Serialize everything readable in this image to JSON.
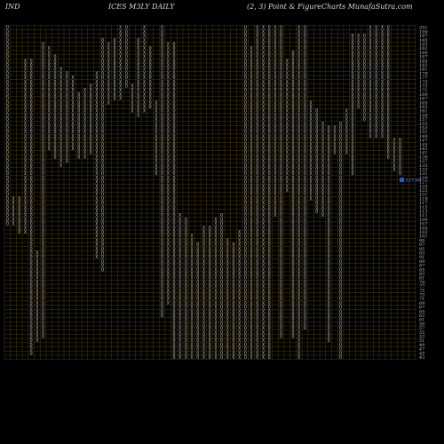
{
  "header": {
    "left": "IND",
    "middle": "ICES M3LY DAILY",
    "right": "(2, 3) Point & Figure",
    "site": "Charts MunafaSutra.com"
  },
  "colors": {
    "background": "#000000",
    "grid": "#4a3c16",
    "marker": "#bdbdbd",
    "price_box": "#1e5fd6"
  },
  "chart_data": {
    "type": "point-and-figure",
    "title": "ICES M3LY DAILY",
    "box_size": 2,
    "reversal": 3,
    "y_ticks": [
      201,
      199,
      197,
      195,
      193,
      191,
      189,
      187,
      185,
      183,
      181,
      179,
      177,
      175,
      173,
      171,
      169,
      167,
      165,
      163,
      161,
      159,
      157,
      155,
      153,
      151,
      149,
      147,
      145,
      143,
      141,
      139,
      137,
      135,
      133,
      131,
      129,
      127,
      125,
      123,
      121,
      119,
      117,
      115,
      113,
      111,
      109,
      107,
      105,
      103,
      101,
      99,
      97,
      95,
      93,
      91,
      89,
      87,
      85,
      83,
      81,
      79,
      77,
      75,
      73,
      71,
      69,
      67,
      65,
      63,
      61,
      59,
      57,
      55,
      53,
      51,
      49,
      47,
      45,
      43
    ],
    "ylim": [
      43,
      201
    ],
    "last_price": 127.99,
    "last_price_label": "127.99",
    "columns": [
      {
        "type": "O",
        "high": 201,
        "low": 107
      },
      {
        "type": "X",
        "high": 119,
        "low": 107
      },
      {
        "type": "O",
        "high": 119,
        "low": 103
      },
      {
        "type": "X",
        "high": 185,
        "low": 103
      },
      {
        "type": "O",
        "high": 185,
        "low": 45
      },
      {
        "type": "X",
        "high": 93,
        "low": 51
      },
      {
        "type": "O",
        "high": 193,
        "low": 53
      },
      {
        "type": "X",
        "high": 191,
        "low": 143
      },
      {
        "type": "O",
        "high": 187,
        "low": 139
      },
      {
        "type": "X",
        "high": 181,
        "low": 135
      },
      {
        "type": "O",
        "high": 179,
        "low": 137
      },
      {
        "type": "X",
        "high": 177,
        "low": 143
      },
      {
        "type": "O",
        "high": 169,
        "low": 139
      },
      {
        "type": "X",
        "high": 171,
        "low": 139
      },
      {
        "type": "O",
        "high": 173,
        "low": 141
      },
      {
        "type": "X",
        "high": 179,
        "low": 91
      },
      {
        "type": "O",
        "high": 195,
        "low": 85
      },
      {
        "type": "X",
        "high": 193,
        "low": 165
      },
      {
        "type": "O",
        "high": 195,
        "low": 167
      },
      {
        "type": "X",
        "high": 201,
        "low": 167
      },
      {
        "type": "O",
        "high": 201,
        "low": 173
      },
      {
        "type": "X",
        "high": 173,
        "low": 161
      },
      {
        "type": "O",
        "high": 195,
        "low": 159
      },
      {
        "type": "X",
        "high": 201,
        "low": 161
      },
      {
        "type": "O",
        "high": 191,
        "low": 163
      },
      {
        "type": "X",
        "high": 165,
        "low": 131
      },
      {
        "type": "O",
        "high": 201,
        "low": 63
      },
      {
        "type": "X",
        "high": 193,
        "low": 69
      },
      {
        "type": "O",
        "high": 193,
        "low": 33
      },
      {
        "type": "X",
        "high": 111,
        "low": 33
      },
      {
        "type": "O",
        "high": 109,
        "low": 29
      },
      {
        "type": "X",
        "high": 101,
        "low": 29
      },
      {
        "type": "O",
        "high": 97,
        "low": 19
      },
      {
        "type": "X",
        "high": 105,
        "low": 19
      },
      {
        "type": "O",
        "high": 105,
        "low": 19
      },
      {
        "type": "X",
        "high": 109,
        "low": 21
      },
      {
        "type": "O",
        "high": 111,
        "low": 15
      },
      {
        "type": "X",
        "high": 99,
        "low": 27
      },
      {
        "type": "O",
        "high": 97,
        "low": 25
      },
      {
        "type": "X",
        "high": 103,
        "low": 37
      },
      {
        "type": "O",
        "high": 201,
        "low": 23
      },
      {
        "type": "X",
        "high": 191,
        "low": 23
      },
      {
        "type": "O",
        "high": 201,
        "low": 17
      },
      {
        "type": "X",
        "high": 201,
        "low": 21
      },
      {
        "type": "O",
        "high": 201,
        "low": 37
      },
      {
        "type": "X",
        "high": 201,
        "low": 111
      },
      {
        "type": "O",
        "high": 201,
        "low": 53
      },
      {
        "type": "X",
        "high": 185,
        "low": 123
      },
      {
        "type": "O",
        "high": 189,
        "low": 53
      },
      {
        "type": "X",
        "high": 201,
        "low": 43
      },
      {
        "type": "O",
        "high": 201,
        "low": 57
      },
      {
        "type": "X",
        "high": 165,
        "low": 119
      },
      {
        "type": "O",
        "high": 161,
        "low": 113
      },
      {
        "type": "X",
        "high": 155,
        "low": 111
      },
      {
        "type": "O",
        "high": 153,
        "low": 51
      },
      {
        "type": "X",
        "high": 153,
        "low": 141
      },
      {
        "type": "O",
        "high": 155,
        "low": 29
      },
      {
        "type": "X",
        "high": 161,
        "low": 141
      },
      {
        "type": "O",
        "high": 197,
        "low": 131
      },
      {
        "type": "X",
        "high": 197,
        "low": 163
      },
      {
        "type": "O",
        "high": 197,
        "low": 157
      },
      {
        "type": "X",
        "high": 201,
        "low": 149
      },
      {
        "type": "O",
        "high": 201,
        "low": 149
      },
      {
        "type": "X",
        "high": 201,
        "low": 149
      },
      {
        "type": "O",
        "high": 201,
        "low": 139
      },
      {
        "type": "X",
        "high": 147,
        "low": 133
      },
      {
        "type": "O",
        "high": 147,
        "low": 131
      }
    ]
  }
}
